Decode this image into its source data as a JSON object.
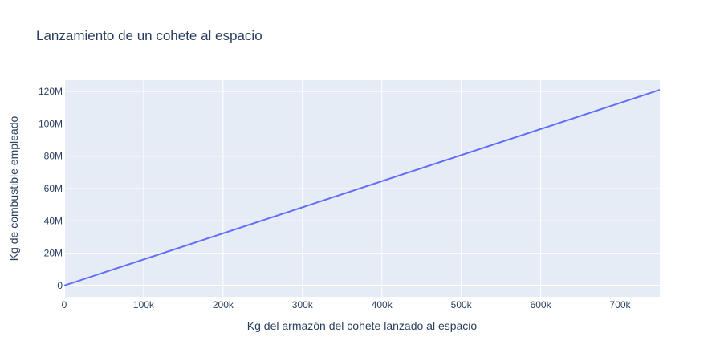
{
  "chart_data": {
    "type": "line",
    "title": "Lanzamiento de un cohete al espacio",
    "xlabel": "Kg del armazón del cohete lanzado al espacio",
    "ylabel": "Kg de combustible empleado",
    "xlim": [
      0,
      750000
    ],
    "ylim": [
      -7000000,
      127000000
    ],
    "x_ticks": [
      0,
      100000,
      200000,
      300000,
      400000,
      500000,
      600000,
      700000
    ],
    "x_tick_labels": [
      "0",
      "100k",
      "200k",
      "300k",
      "400k",
      "500k",
      "600k",
      "700k"
    ],
    "y_ticks": [
      0,
      20000000,
      40000000,
      60000000,
      80000000,
      100000000,
      120000000
    ],
    "y_tick_labels": [
      "0",
      "20M",
      "40M",
      "60M",
      "80M",
      "100M",
      "120M"
    ],
    "grid": true,
    "series": [
      {
        "color": "#636efa",
        "x": [
          0,
          750000
        ],
        "y": [
          0,
          121000000
        ]
      }
    ],
    "colors": {
      "plot_bg": "#e5ecf6",
      "grid": "#ffffff",
      "text": "#2a3f5f",
      "line": "#636efa"
    }
  }
}
